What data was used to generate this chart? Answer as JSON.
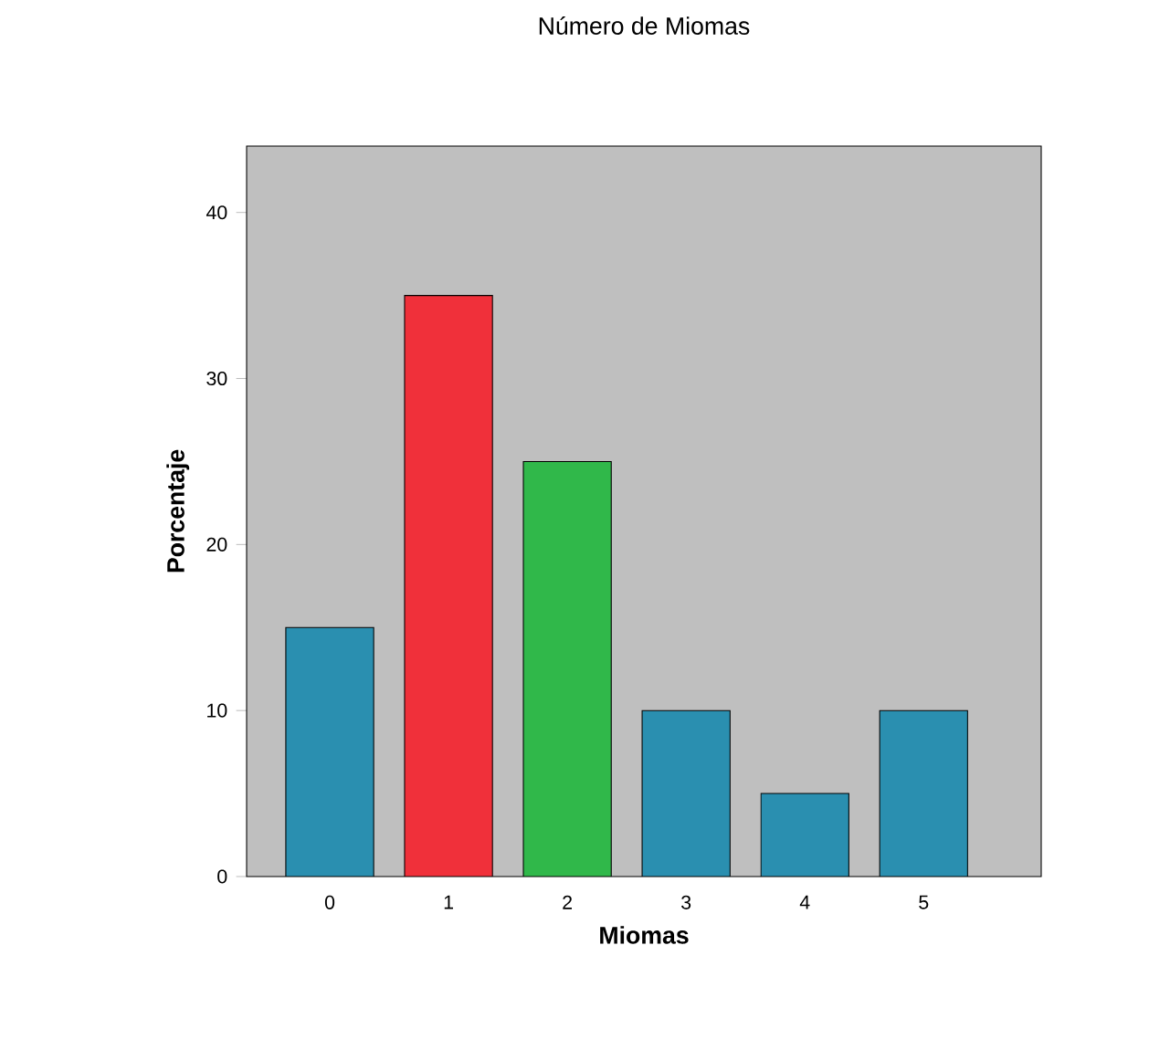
{
  "chart_data": {
    "type": "bar",
    "title": "Número de Miomas",
    "xlabel": "Miomas",
    "ylabel": "Porcentaje",
    "categories": [
      "0",
      "1",
      "2",
      "3",
      "4",
      "5"
    ],
    "values": [
      15,
      35,
      25,
      10,
      5,
      10
    ],
    "colors": [
      "#2a8fb0",
      "#f0303a",
      "#30b84a",
      "#2a8fb0",
      "#2a8fb0",
      "#2a8fb0"
    ],
    "ylim": [
      0,
      44
    ],
    "yticks": [
      0,
      10,
      20,
      30,
      40
    ]
  }
}
